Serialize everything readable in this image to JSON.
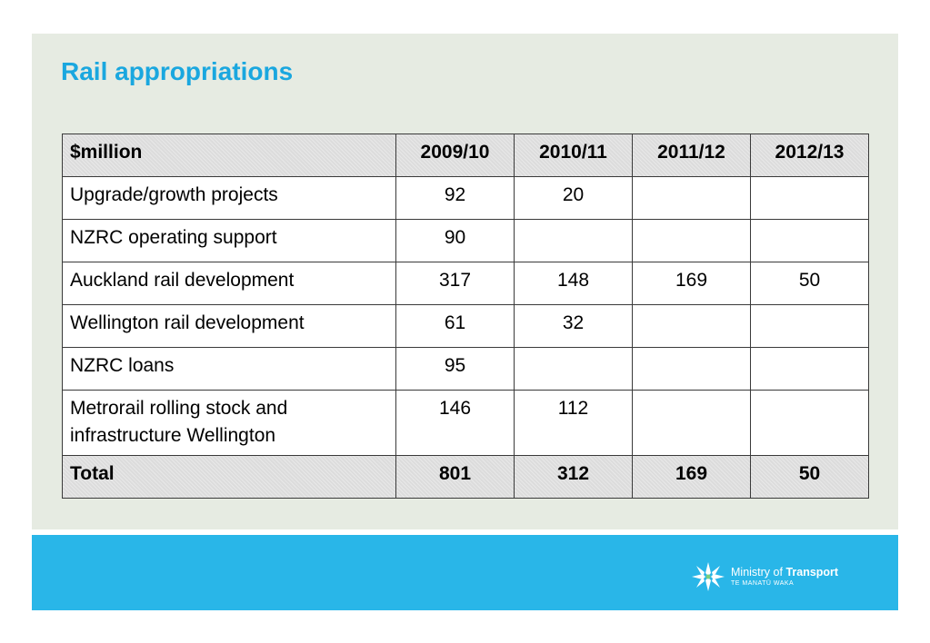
{
  "slide": {
    "title": "Rail appropriations"
  },
  "table": {
    "header_label": "$million",
    "years": [
      "2009/10",
      "2010/11",
      "2011/12",
      "2012/13"
    ],
    "rows": [
      {
        "label": "Upgrade/growth projects",
        "values": [
          "92",
          "20",
          "",
          ""
        ]
      },
      {
        "label": "NZRC operating support",
        "values": [
          "90",
          "",
          "",
          ""
        ]
      },
      {
        "label": "Auckland rail development",
        "values": [
          "317",
          "148",
          "169",
          "50"
        ]
      },
      {
        "label": "Wellington rail development",
        "values": [
          "61",
          "32",
          "",
          ""
        ]
      },
      {
        "label": "NZRC loans",
        "values": [
          "95",
          "",
          "",
          ""
        ]
      },
      {
        "label": "Metrorail rolling stock and infrastructure Wellington",
        "values": [
          "146",
          "112",
          "",
          ""
        ]
      }
    ],
    "total": {
      "label": "Total",
      "values": [
        "801",
        "312",
        "169",
        "50"
      ]
    }
  },
  "footer": {
    "logo_text": "Ministry of",
    "logo_text_bold": "Transport",
    "logo_subtext": "TE MANATŪ WAKA",
    "band_color": "#29b6e8",
    "title_color": "#1aa7df",
    "logo_icon": "koru-star-icon"
  }
}
